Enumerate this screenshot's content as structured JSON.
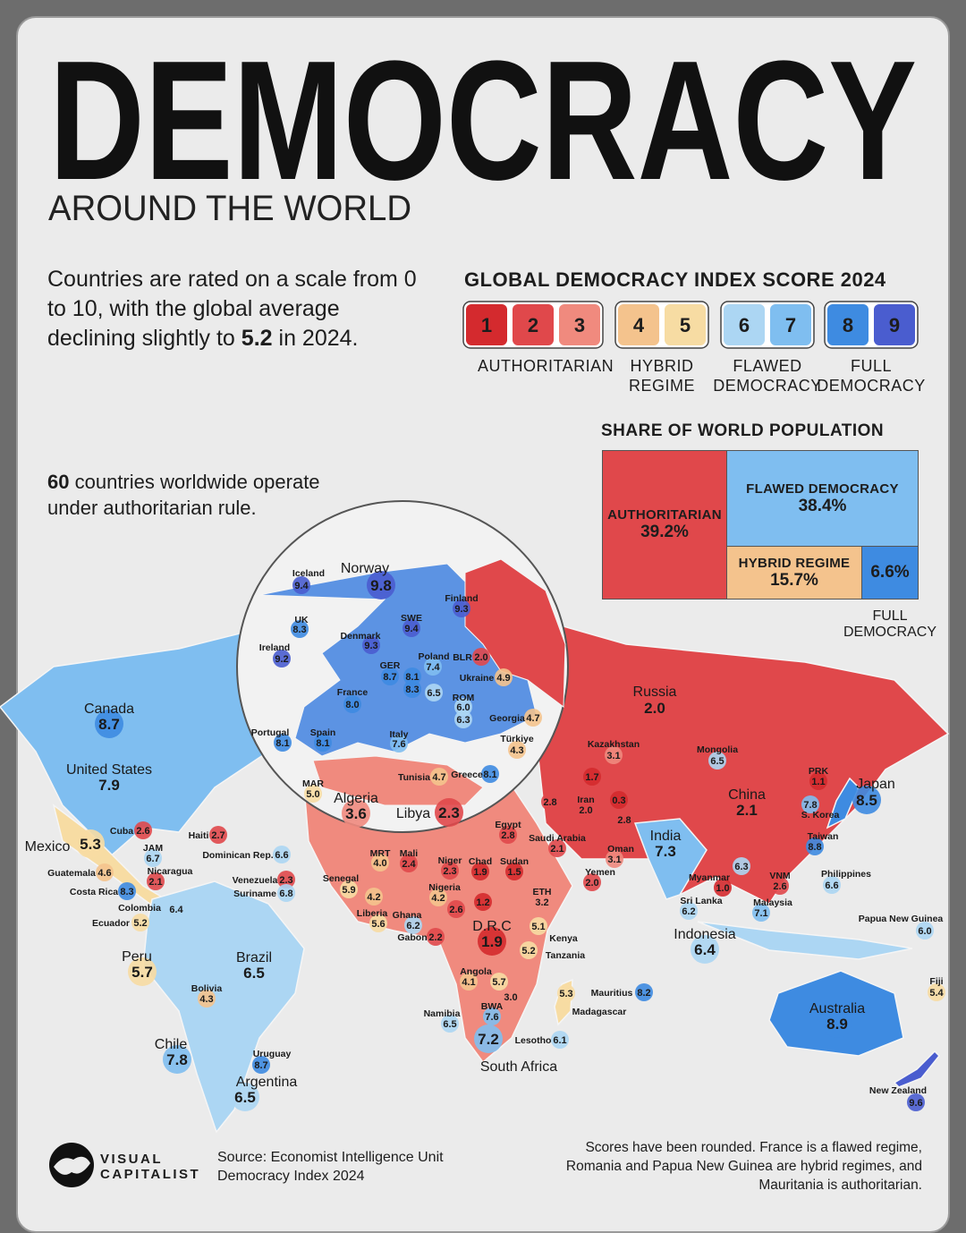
{
  "header": {
    "title": "DEMOCRACY",
    "subtitle": "AROUND THE WORLD"
  },
  "intro": {
    "before": "Countries are rated on a scale from 0 to 10, with the global average declining slightly to",
    "highlight": "5.2",
    "after": "in 2024."
  },
  "authoritarian_note": {
    "highlight": "60",
    "text": "countries worldwide operate under authoritarian rule."
  },
  "legend": {
    "title": "GLOBAL DEMOCRACY INDEX SCORE 2024",
    "groups": [
      {
        "label": "AUTHORITARIAN",
        "levels": [
          {
            "value": 1,
            "color": "#d42a2e"
          },
          {
            "value": 2,
            "color": "#e0484b"
          },
          {
            "value": 3,
            "color": "#f08a7e"
          }
        ]
      },
      {
        "label": "HYBRID REGIME",
        "levels": [
          {
            "value": 4,
            "color": "#f4c38d"
          },
          {
            "value": 5,
            "color": "#f7dca3"
          }
        ]
      },
      {
        "label": "FLAWED DEMOCRACY",
        "levels": [
          {
            "value": 6,
            "color": "#acd6f3"
          },
          {
            "value": 7,
            "color": "#7fbef0"
          }
        ]
      },
      {
        "label": "FULL DEMOCRACY",
        "levels": [
          {
            "value": 8,
            "color": "#3e8be1"
          },
          {
            "value": 9,
            "color": "#4a5dcf"
          }
        ]
      }
    ]
  },
  "population": {
    "title": "SHARE OF WORLD POPULATION",
    "authoritarian": {
      "label": "AUTHORITARIAN",
      "value": "39.2%"
    },
    "flawed": {
      "label": "FLAWED DEMOCRACY",
      "value": "38.4%"
    },
    "hybrid": {
      "label": "HYBRID REGIME",
      "value": "15.7%"
    },
    "full": {
      "label": "FULL DEMOCRACY",
      "value": "6.6%"
    }
  },
  "countries": [
    {
      "name": "Iceland",
      "score": "9.4"
    },
    {
      "name": "Norway",
      "score": "9.8"
    },
    {
      "name": "Finland",
      "score": "9.3"
    },
    {
      "name": "UK",
      "score": "8.3"
    },
    {
      "name": "SWE",
      "score": "9.4"
    },
    {
      "name": "Denmark",
      "score": "9.3"
    },
    {
      "name": "Ireland",
      "score": "9.2"
    },
    {
      "name": "Poland",
      "score": "7.4"
    },
    {
      "name": "BLR",
      "score": "2.0"
    },
    {
      "name": "GER",
      "score": "8.7"
    },
    {
      "score": "8.1"
    },
    {
      "name": "Ukraine",
      "score": "4.9"
    },
    {
      "score": "8.3"
    },
    {
      "score": "6.5"
    },
    {
      "name": "France",
      "score": "8.0"
    },
    {
      "name": "ROM",
      "score": "6.0"
    },
    {
      "score": "6.3"
    },
    {
      "name": "Georgia",
      "score": "4.7"
    },
    {
      "name": "Portugal",
      "score": "8.1"
    },
    {
      "name": "Spain",
      "score": "8.1"
    },
    {
      "name": "Italy",
      "score": "7.6"
    },
    {
      "name": "Türkiye",
      "score": "4.3"
    },
    {
      "name": "Tunisia",
      "score": "4.7"
    },
    {
      "name": "Greece",
      "score": "8.1"
    },
    {
      "name": "Russia",
      "score": "2.0"
    },
    {
      "name": "Kazakhstan",
      "score": "3.1"
    },
    {
      "name": "Mongolia",
      "score": "6.5"
    },
    {
      "name": "Canada",
      "score": "8.7"
    },
    {
      "name": "United States",
      "score": "7.9"
    },
    {
      "name": "MAR",
      "score": "5.0"
    },
    {
      "name": "Algeria",
      "score": "3.6"
    },
    {
      "name": "Libya",
      "score": "2.3"
    },
    {
      "score": "1.7"
    },
    {
      "score": "2.8"
    },
    {
      "name": "Iran",
      "score": "2.0"
    },
    {
      "score": "0.3"
    },
    {
      "score": "2.8"
    },
    {
      "name": "China",
      "score": "2.1"
    },
    {
      "name": "PRK",
      "score": "1.1"
    },
    {
      "name": "Japan",
      "score": "8.5"
    },
    {
      "name": "S. Korea",
      "score": "7.8"
    },
    {
      "name": "Taiwan",
      "score": "8.8"
    },
    {
      "name": "Egypt",
      "score": "2.8"
    },
    {
      "name": "Saudi Arabia",
      "score": "2.1"
    },
    {
      "name": "India",
      "score": "7.3"
    },
    {
      "name": "Cuba",
      "score": "2.6"
    },
    {
      "name": "Haiti",
      "score": "2.7"
    },
    {
      "name": "Mexico",
      "score": "5.3"
    },
    {
      "name": "JAM",
      "score": "6.7"
    },
    {
      "name": "Dominican Rep.",
      "score": "6.6"
    },
    {
      "name": "Guatemala",
      "score": "4.6"
    },
    {
      "name": "Nicaragua",
      "score": "2.1"
    },
    {
      "name": "Venezuela",
      "score": "2.3"
    },
    {
      "name": "Suriname",
      "score": "6.8"
    },
    {
      "name": "Costa Rica",
      "score": "8.3"
    },
    {
      "name": "Colombia",
      "score": "6.4"
    },
    {
      "name": "Ecuador",
      "score": "5.2"
    },
    {
      "name": "Senegal",
      "score": "5.9"
    },
    {
      "name": "MRT",
      "score": "4.0"
    },
    {
      "name": "Mali",
      "score": "2.4"
    },
    {
      "name": "Niger",
      "score": "2.3"
    },
    {
      "name": "Chad",
      "score": "1.9"
    },
    {
      "name": "Sudan",
      "score": "1.5"
    },
    {
      "name": "Oman",
      "score": "3.1"
    },
    {
      "name": "Yemen",
      "score": "2.0"
    },
    {
      "name": "ETH",
      "score": "3.2"
    },
    {
      "score": "4.2"
    },
    {
      "name": "Nigeria",
      "score": "4.2"
    },
    {
      "name": "Liberia",
      "score": "5.6"
    },
    {
      "name": "Ghana",
      "score": "6.2"
    },
    {
      "score": "2.6"
    },
    {
      "score": "1.2"
    },
    {
      "name": "Gabon",
      "score": "2.2"
    },
    {
      "name": "D.R.C",
      "score": "1.9"
    },
    {
      "name": "Kenya",
      "score": "5.1"
    },
    {
      "name": "Tanzania",
      "score": "5.2"
    },
    {
      "name": "Myanmar",
      "score": "1.0"
    },
    {
      "score": "6.3"
    },
    {
      "name": "VNM",
      "score": "2.6"
    },
    {
      "name": "Philippines",
      "score": "6.6"
    },
    {
      "name": "Sri Lanka",
      "score": "6.2"
    },
    {
      "name": "Malaysia",
      "score": "7.1"
    },
    {
      "name": "Papua New Guinea",
      "score": "6.0"
    },
    {
      "name": "Indonesia",
      "score": "6.4"
    },
    {
      "name": "Peru",
      "score": "5.7"
    },
    {
      "name": "Brazil",
      "score": "6.5"
    },
    {
      "name": "Angola",
      "score": "4.1"
    },
    {
      "score": "5.7"
    },
    {
      "score": "3.0"
    },
    {
      "score": "5.3"
    },
    {
      "name": "Mauritius",
      "score": "8.2"
    },
    {
      "name": "Madagascar"
    },
    {
      "name": "Bolivia",
      "score": "4.3"
    },
    {
      "name": "Fiji",
      "score": "5.4"
    },
    {
      "name": "Namibia",
      "score": "6.5"
    },
    {
      "name": "BWA",
      "score": "7.6"
    },
    {
      "name": "Australia",
      "score": "8.9"
    },
    {
      "name": "South Africa",
      "score": "7.2"
    },
    {
      "name": "Lesotho",
      "score": "6.1"
    },
    {
      "name": "Chile",
      "score": "7.8"
    },
    {
      "name": "Uruguay",
      "score": "8.7"
    },
    {
      "name": "Argentina",
      "score": "6.5"
    },
    {
      "name": "New Zealand",
      "score": "9.6"
    }
  ],
  "footer": {
    "logo_top": "VISUAL",
    "logo_bottom": "CAPITALIST",
    "source": "Source: Economist Intelligence Unit Democracy Index 2024",
    "note": "Scores have been rounded. France is a flawed regime, Romania and Papua New Guinea are hybrid regimes, and Mauritania is authoritarian."
  }
}
